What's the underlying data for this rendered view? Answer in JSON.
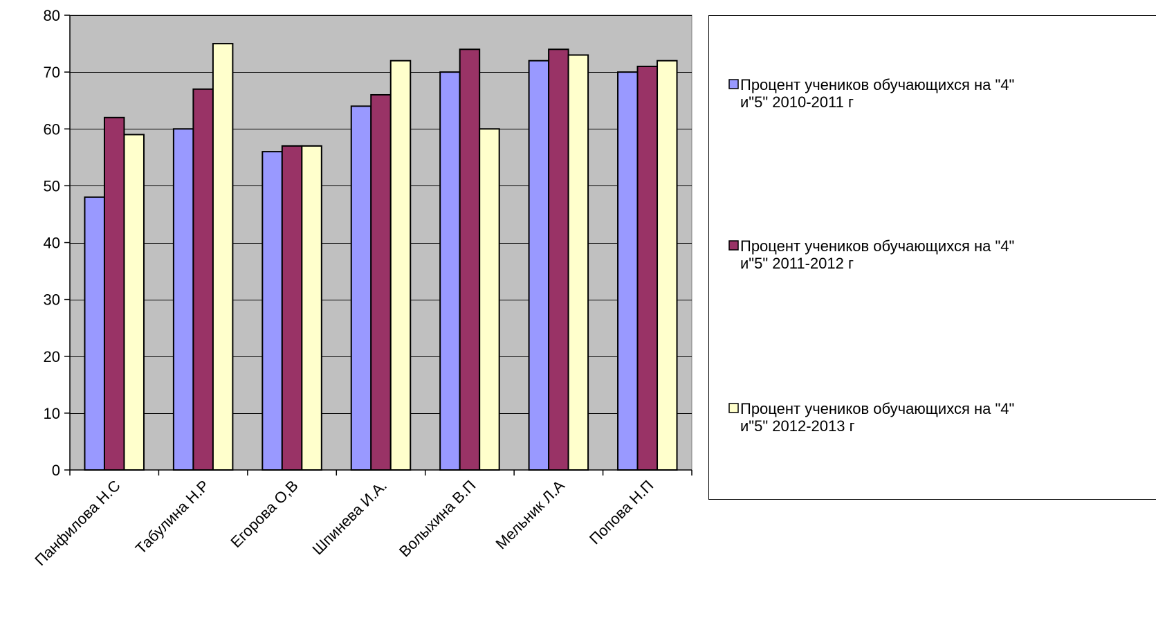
{
  "chart_data": {
    "type": "bar",
    "title": "",
    "xlabel": "",
    "ylabel": "",
    "ylim": [
      0,
      80
    ],
    "y_ticks": [
      "0",
      "10",
      "20",
      "30",
      "40",
      "50",
      "60",
      "70",
      "80"
    ],
    "grid": true,
    "legend_position": "right",
    "categories": [
      "Панфилова Н.С",
      "Табулина Н.Р",
      "Егорова О,В",
      "Шпинева И.А.",
      "Волыхина В.П",
      "Мельник Л.А",
      "Попова Н.П"
    ],
    "series": [
      {
        "name": "Процент учеников обучающихся на \"4\" и\"5\" 2010-2011 г",
        "legend_lines": [
          "Процент учеников обучающихся на \"4\"",
          "и\"5\" 2010-2011 г"
        ],
        "color": "#9999FF",
        "values": [
          48,
          60,
          56,
          64,
          70,
          72,
          70
        ]
      },
      {
        "name": "Процент учеников обучающихся на \"4\" и\"5\" 2011-2012 г",
        "legend_lines": [
          "Процент учеников обучающихся на \"4\"",
          "и\"5\" 2011-2012 г"
        ],
        "color": "#993366",
        "values": [
          62,
          67,
          57,
          66,
          74,
          74,
          71
        ]
      },
      {
        "name": "Процент учеников обучающихся на \"4\" и\"5\" 2012-2013 г",
        "legend_lines": [
          "Процент учеников обучающихся на \"4\"",
          "и\"5\" 2012-2013 г"
        ],
        "color": "#FFFFCC",
        "values": [
          59,
          75,
          57,
          72,
          60,
          73,
          72
        ]
      }
    ],
    "colors": {
      "plot_background": "#C0C0C0",
      "gridline": "#000000",
      "bar_outline": "#000000"
    }
  }
}
